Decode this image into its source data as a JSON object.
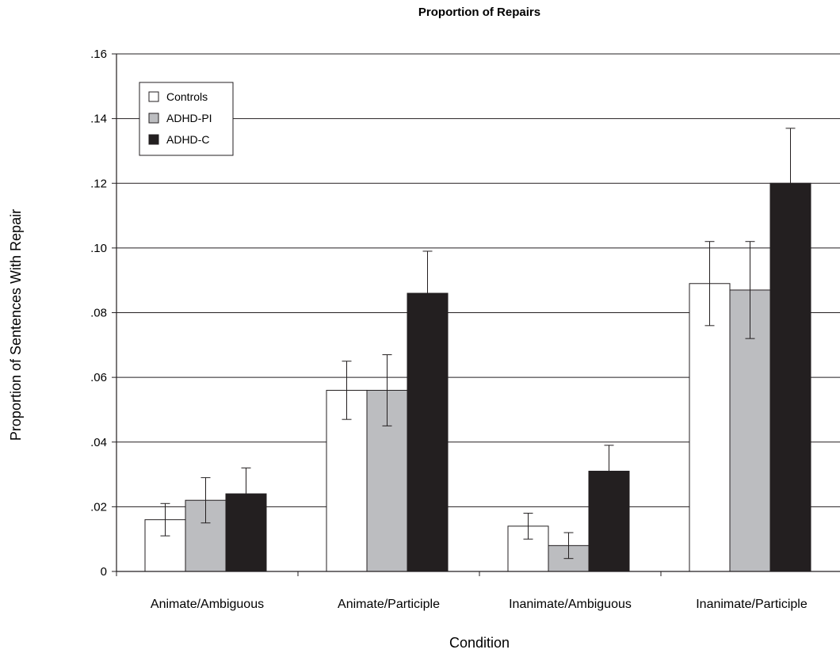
{
  "chart_data": {
    "type": "bar",
    "title": "Proportion of Repairs",
    "xlabel": "Condition",
    "ylabel": "Proportion of Sentences With Repair",
    "ylim": [
      0,
      0.16
    ],
    "yticks": [
      ".16",
      ".14",
      ".12",
      ".10",
      ".08",
      ".06",
      ".04",
      ".02",
      "0"
    ],
    "ytick_values": [
      0.16,
      0.14,
      0.12,
      0.1,
      0.08,
      0.06,
      0.04,
      0.02,
      0
    ],
    "grid": true,
    "legend_position": "top-left",
    "categories": [
      "Animate/Ambiguous",
      "Animate/Participle",
      "Inanimate/Ambiguous",
      "Inanimate/Participle"
    ],
    "series": [
      {
        "name": "Controls",
        "color": "#ffffff",
        "values": [
          0.016,
          0.056,
          0.014,
          0.089
        ],
        "error_low": [
          0.011,
          0.047,
          0.01,
          0.076
        ],
        "error_high": [
          0.021,
          0.065,
          0.018,
          0.102
        ]
      },
      {
        "name": "ADHD-PI",
        "color": "#bcbdc0",
        "values": [
          0.022,
          0.056,
          0.008,
          0.087
        ],
        "error_low": [
          0.015,
          0.045,
          0.004,
          0.072
        ],
        "error_high": [
          0.029,
          0.067,
          0.012,
          0.102
        ]
      },
      {
        "name": "ADHD-C",
        "color": "#231f20",
        "values": [
          0.024,
          0.086,
          0.031,
          0.12
        ],
        "error_low": [
          0.024,
          0.086,
          0.031,
          0.12
        ],
        "error_high": [
          0.032,
          0.099,
          0.039,
          0.137
        ]
      }
    ]
  }
}
